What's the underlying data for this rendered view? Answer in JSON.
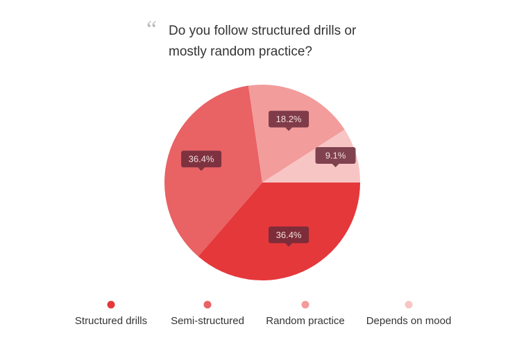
{
  "chart_data": {
    "type": "pie",
    "title": "Do you follow structured drills or mostly random practice?",
    "categories": [
      "Structured drills",
      "Semi-structured",
      "Random practice",
      "Depends on mood"
    ],
    "values": [
      36.4,
      36.4,
      18.2,
      9.1
    ],
    "value_labels": [
      "36.4%",
      "36.4%",
      "18.2%",
      "9.1%"
    ],
    "colors": [
      "#e5383b",
      "#e96264",
      "#f29c9c",
      "#f8c5c5"
    ],
    "legend": "bottom"
  }
}
